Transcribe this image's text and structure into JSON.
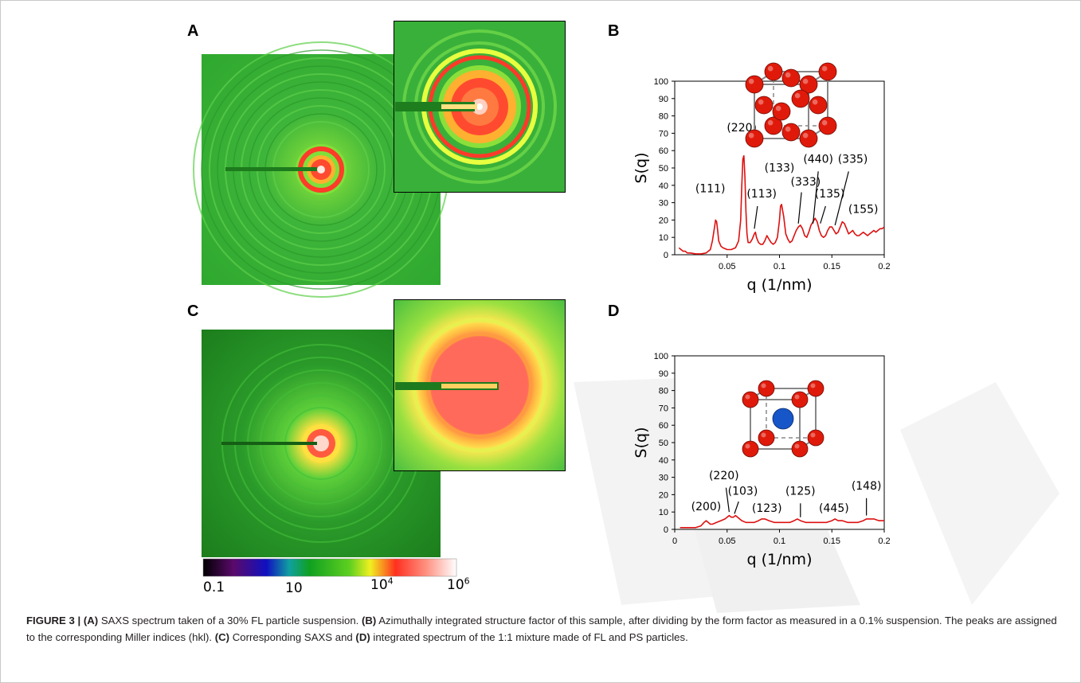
{
  "panels": {
    "A": "A",
    "B": "B",
    "C": "C",
    "D": "D"
  },
  "colors": {
    "curve": "#dd1010",
    "fcc_atom": "#e01a0a",
    "bcc_center_atom": "#1656c8",
    "saxs_background_A": "#2fb02f",
    "saxs_background_C": "#1f8a1f"
  },
  "chart_data": [
    {
      "id": "B",
      "type": "line",
      "xlabel": "q (1/nm)",
      "ylabel": "S(q)",
      "xlim": [
        0,
        0.2
      ],
      "ylim": [
        0,
        100
      ],
      "xticks": [
        "0.05",
        "0.1",
        "0.15",
        "0.2"
      ],
      "yticks": [
        "0",
        "10",
        "20",
        "30",
        "40",
        "50",
        "60",
        "70",
        "80",
        "90",
        "100"
      ],
      "grid": false,
      "series": [
        {
          "x": [
            0.004,
            0.006,
            0.008,
            0.01,
            0.012,
            0.015,
            0.02,
            0.025,
            0.03,
            0.034,
            0.036,
            0.038,
            0.039,
            0.04,
            0.041,
            0.042,
            0.044,
            0.046,
            0.05,
            0.054,
            0.058,
            0.061,
            0.063,
            0.064,
            0.065,
            0.066,
            0.067,
            0.068,
            0.069,
            0.07,
            0.072,
            0.074,
            0.076,
            0.077,
            0.078,
            0.08,
            0.082,
            0.084,
            0.086,
            0.088,
            0.09,
            0.092,
            0.094,
            0.096,
            0.098,
            0.1,
            0.101,
            0.102,
            0.104,
            0.106,
            0.108,
            0.11,
            0.112,
            0.114,
            0.116,
            0.118,
            0.12,
            0.122,
            0.124,
            0.126,
            0.128,
            0.13,
            0.132,
            0.134,
            0.136,
            0.138,
            0.14,
            0.142,
            0.144,
            0.146,
            0.148,
            0.15,
            0.152,
            0.154,
            0.156,
            0.158,
            0.16,
            0.162,
            0.164,
            0.166,
            0.168,
            0.17,
            0.172,
            0.174,
            0.176,
            0.178,
            0.18,
            0.182,
            0.184,
            0.186,
            0.188,
            0.19,
            0.192,
            0.194,
            0.196,
            0.198,
            0.2
          ],
          "y": [
            4,
            3,
            2,
            2,
            1,
            1,
            0.5,
            0.5,
            1,
            3,
            8,
            16,
            20,
            19,
            14,
            8,
            5,
            4,
            3,
            3,
            4,
            8,
            20,
            40,
            55,
            57,
            45,
            25,
            12,
            7,
            7,
            9,
            12,
            13,
            10,
            7,
            6,
            6,
            8,
            11,
            9,
            7,
            6,
            7,
            10,
            20,
            28,
            29,
            22,
            12,
            9,
            7,
            8,
            11,
            14,
            16,
            17,
            15,
            11,
            10,
            13,
            17,
            19,
            21,
            19,
            14,
            11,
            10,
            11,
            14,
            16,
            16,
            14,
            12,
            13,
            16,
            19,
            18,
            15,
            12,
            13,
            14,
            12,
            11,
            11,
            12,
            13,
            12,
            11,
            12,
            13,
            14,
            13,
            14,
            15,
            15,
            16
          ]
        }
      ],
      "annotations": [
        "(111)",
        "(220)",
        "(113)",
        "(133)",
        "(333)",
        "(440)",
        "(135)",
        "(335)",
        "(155)"
      ]
    },
    {
      "id": "D",
      "type": "line",
      "xlabel": "q (1/nm)",
      "ylabel": "S(q)",
      "xlim": [
        0,
        0.2
      ],
      "ylim": [
        0,
        100
      ],
      "xticks": [
        "0",
        "0.05",
        "0.1",
        "0.15",
        "0.2"
      ],
      "yticks": [
        "0",
        "10",
        "20",
        "30",
        "40",
        "50",
        "60",
        "70",
        "80",
        "90",
        "100"
      ],
      "grid": false,
      "series": [
        {
          "x": [
            0.005,
            0.01,
            0.015,
            0.02,
            0.025,
            0.028,
            0.03,
            0.032,
            0.034,
            0.036,
            0.04,
            0.044,
            0.048,
            0.05,
            0.052,
            0.054,
            0.056,
            0.058,
            0.06,
            0.064,
            0.068,
            0.072,
            0.076,
            0.08,
            0.083,
            0.086,
            0.09,
            0.095,
            0.1,
            0.105,
            0.11,
            0.114,
            0.117,
            0.12,
            0.125,
            0.13,
            0.135,
            0.14,
            0.145,
            0.15,
            0.153,
            0.156,
            0.16,
            0.165,
            0.17,
            0.175,
            0.18,
            0.183,
            0.186,
            0.19,
            0.195,
            0.2
          ],
          "y": [
            1,
            1,
            1,
            1,
            2,
            4,
            5,
            4,
            3,
            3,
            4,
            5,
            6,
            7,
            8,
            7,
            7,
            8,
            7,
            5,
            4,
            4,
            4,
            5,
            6,
            6,
            5,
            4,
            4,
            4,
            4,
            5,
            6,
            5,
            4,
            4,
            4,
            4,
            4,
            5,
            6,
            5,
            5,
            4,
            4,
            4,
            5,
            6,
            6,
            6,
            5,
            5
          ]
        }
      ],
      "annotations": [
        "(200)",
        "(220)",
        "(103)",
        "(123)",
        "(125)",
        "(445)",
        "(148)"
      ]
    }
  ],
  "colorbar": {
    "labels": [
      "0.1",
      "10",
      "10",
      "10"
    ],
    "exponents": [
      "",
      "",
      "4",
      "6"
    ]
  },
  "caption": {
    "figure_label": "FIGURE 3 | ",
    "a_ref": "(A)",
    "a_text": " SAXS spectrum taken of a 30% FL particle suspension. ",
    "b_ref": "(B)",
    "b_text": " Azimuthally integrated structure factor of this sample, after dividing by the form factor as measured in a 0.1% suspension. The peaks are assigned to the corresponding Miller indices (hkl). ",
    "c_ref": "(C)",
    "c_text": " Corresponding SAXS and ",
    "d_ref": "(D)",
    "d_text": " integrated spectrum of the 1:1 mixture made of FL and PS particles."
  }
}
